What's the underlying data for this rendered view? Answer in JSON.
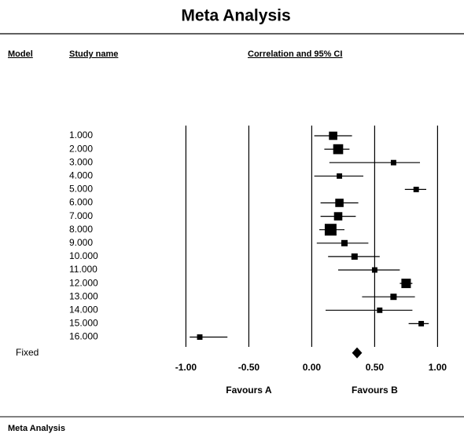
{
  "chart_data": {
    "type": "forest",
    "title": "Meta Analysis",
    "headers": [
      "Model",
      "Study name",
      "Correlation and 95% CI"
    ],
    "studies": [
      "1.000",
      "2.000",
      "3.000",
      "4.000",
      "5.000",
      "6.000",
      "7.000",
      "8.000",
      "9.000",
      "10.000",
      "11.000",
      "12.000",
      "13.000",
      "14.000",
      "15.000",
      "16.000"
    ],
    "estimates": [
      0.17,
      0.21,
      0.65,
      0.22,
      0.83,
      0.22,
      0.21,
      0.15,
      0.26,
      0.34,
      0.5,
      0.75,
      0.65,
      0.54,
      0.87,
      -0.89
    ],
    "ci_lower": [
      0.02,
      0.1,
      0.14,
      0.02,
      0.74,
      0.07,
      0.07,
      0.06,
      0.04,
      0.13,
      0.21,
      0.7,
      0.4,
      0.11,
      0.77,
      -0.97
    ],
    "ci_upper": [
      0.32,
      0.3,
      0.86,
      0.41,
      0.91,
      0.37,
      0.35,
      0.26,
      0.45,
      0.54,
      0.7,
      0.8,
      0.82,
      0.8,
      0.93,
      -0.67
    ],
    "weights": [
      7,
      10,
      3,
      3,
      3,
      7,
      7,
      14,
      4,
      4,
      3,
      9,
      4,
      3,
      3,
      3
    ],
    "summary": {
      "label": "Fixed",
      "estimate": 0.36,
      "ci_lower": 0.32,
      "ci_upper": 0.4
    },
    "xlim": [
      -1.24,
      1.06
    ],
    "xticks": [
      {
        "value": -1,
        "label": "-1.00"
      },
      {
        "value": -0.5,
        "label": "-0.50"
      },
      {
        "value": 0,
        "label": "0.00"
      },
      {
        "value": 0.5,
        "label": "0.50"
      },
      {
        "value": 1,
        "label": "1.00"
      }
    ],
    "favours": [
      "Favours A",
      "Favours B"
    ],
    "footer": "Meta Analysis",
    "grid": true,
    "color": "#000000"
  }
}
